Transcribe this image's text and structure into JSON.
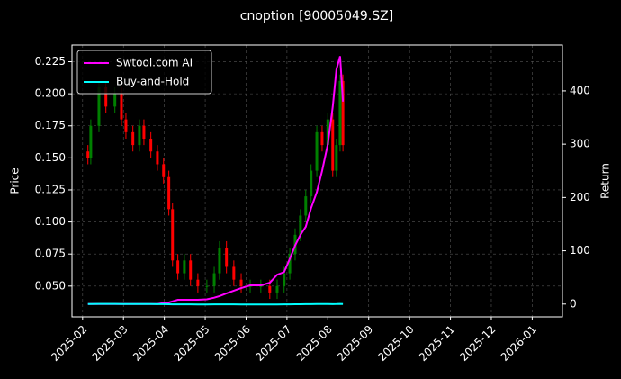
{
  "chart_data": {
    "type": "candlestick",
    "title": "cnoption [90005049.SZ]",
    "ylabel": "Price",
    "y2label": "Return",
    "x": [
      1.13,
      1.2,
      1.4,
      1.57,
      1.79,
      1.95,
      2.06,
      2.23,
      2.39,
      2.5,
      2.67,
      2.83,
      2.98,
      3.11,
      3.2,
      3.33,
      3.49,
      3.64,
      3.82,
      4.04,
      4.22,
      4.35,
      4.52,
      4.7,
      4.88,
      5.1,
      5.36,
      5.58,
      5.76,
      5.93,
      6.07,
      6.2,
      6.33,
      6.46,
      6.59,
      6.73,
      6.86,
      7.0,
      7.12,
      7.21,
      7.3,
      7.37
    ],
    "open": [
      0.155,
      0.15,
      0.175,
      0.205,
      0.19,
      0.2,
      0.18,
      0.17,
      0.16,
      0.175,
      0.165,
      0.155,
      0.145,
      0.135,
      0.11,
      0.07,
      0.06,
      0.07,
      0.055,
      0.05,
      0.05,
      0.06,
      0.08,
      0.065,
      0.055,
      0.05,
      0.05,
      0.05,
      0.045,
      0.05,
      0.06,
      0.075,
      0.09,
      0.105,
      0.12,
      0.14,
      0.17,
      0.16,
      0.18,
      0.14,
      0.16,
      0.21
    ],
    "high": [
      0.16,
      0.18,
      0.21,
      0.21,
      0.205,
      0.205,
      0.185,
      0.175,
      0.18,
      0.18,
      0.17,
      0.16,
      0.15,
      0.14,
      0.115,
      0.075,
      0.075,
      0.075,
      0.06,
      0.055,
      0.065,
      0.085,
      0.085,
      0.07,
      0.06,
      0.055,
      0.055,
      0.055,
      0.055,
      0.065,
      0.08,
      0.095,
      0.11,
      0.125,
      0.145,
      0.175,
      0.175,
      0.185,
      0.185,
      0.165,
      0.215,
      0.215
    ],
    "low": [
      0.145,
      0.145,
      0.17,
      0.185,
      0.185,
      0.175,
      0.165,
      0.155,
      0.155,
      0.16,
      0.15,
      0.14,
      0.13,
      0.105,
      0.065,
      0.055,
      0.055,
      0.05,
      0.045,
      0.045,
      0.045,
      0.055,
      0.06,
      0.05,
      0.045,
      0.045,
      0.045,
      0.04,
      0.04,
      0.045,
      0.055,
      0.07,
      0.085,
      0.1,
      0.115,
      0.135,
      0.155,
      0.155,
      0.135,
      0.135,
      0.155,
      0.155
    ],
    "close": [
      0.15,
      0.175,
      0.205,
      0.19,
      0.2,
      0.18,
      0.17,
      0.16,
      0.175,
      0.165,
      0.155,
      0.145,
      0.135,
      0.11,
      0.07,
      0.06,
      0.07,
      0.055,
      0.05,
      0.05,
      0.06,
      0.08,
      0.065,
      0.055,
      0.05,
      0.05,
      0.05,
      0.045,
      0.05,
      0.06,
      0.075,
      0.09,
      0.105,
      0.12,
      0.14,
      0.17,
      0.16,
      0.18,
      0.14,
      0.16,
      0.21,
      0.16
    ],
    "up_color": "#008000",
    "down_color": "#ff0000",
    "series": [
      {
        "name": "Swtool.com AI",
        "color": "#ff00ff",
        "axis": "y2",
        "values": [
          0,
          0,
          0,
          0,
          0,
          0,
          0,
          0,
          0,
          0,
          0,
          0,
          2,
          3,
          5,
          8,
          8,
          8,
          8,
          9,
          12,
          15,
          20,
          25,
          30,
          35,
          35,
          40,
          55,
          60,
          85,
          110,
          130,
          145,
          180,
          210,
          250,
          300,
          370,
          440,
          465,
          380
        ]
      },
      {
        "name": "Buy-and-Hold",
        "color": "#00ffff",
        "axis": "y2",
        "values": [
          -0.03,
          0.13,
          0.32,
          0.23,
          0.29,
          0.16,
          0.1,
          0.03,
          0.13,
          0.06,
          0,
          -0.06,
          -0.13,
          -0.29,
          -0.55,
          -0.61,
          -0.55,
          -0.65,
          -0.68,
          -0.68,
          -0.61,
          -0.48,
          -0.58,
          -0.65,
          -0.68,
          -0.68,
          -0.68,
          -0.71,
          -0.68,
          -0.61,
          -0.52,
          -0.42,
          -0.32,
          -0.23,
          -0.1,
          0.1,
          0.03,
          0.16,
          -0.1,
          0.03,
          0.35,
          0.03
        ]
      }
    ],
    "xlim": [
      0.74,
      12.74
    ],
    "xticks": [
      {
        "value": 1,
        "label": "2025-02"
      },
      {
        "value": 2,
        "label": "2025-03"
      },
      {
        "value": 3,
        "label": "2025-04"
      },
      {
        "value": 4,
        "label": "2025-05"
      },
      {
        "value": 5,
        "label": "2025-06"
      },
      {
        "value": 6,
        "label": "2025-07"
      },
      {
        "value": 7,
        "label": "2025-08"
      },
      {
        "value": 8,
        "label": "2025-09"
      },
      {
        "value": 9,
        "label": "2025-10"
      },
      {
        "value": 10,
        "label": "2025-11"
      },
      {
        "value": 11,
        "label": "2025-12"
      },
      {
        "value": 12,
        "label": "2026-01"
      }
    ],
    "ylim": [
      0.026,
      0.238
    ],
    "yticks": [
      {
        "value": 0.05,
        "label": "0.050"
      },
      {
        "value": 0.075,
        "label": "0.075"
      },
      {
        "value": 0.1,
        "label": "0.100"
      },
      {
        "value": 0.125,
        "label": "0.125"
      },
      {
        "value": 0.15,
        "label": "0.150"
      },
      {
        "value": 0.175,
        "label": "0.175"
      },
      {
        "value": 0.2,
        "label": "0.200"
      },
      {
        "value": 0.225,
        "label": "0.225"
      }
    ],
    "y2lim": [
      -24,
      486
    ],
    "y2ticks": [
      0,
      100,
      200,
      300,
      400
    ],
    "grid": true,
    "legend": "upper-left"
  }
}
